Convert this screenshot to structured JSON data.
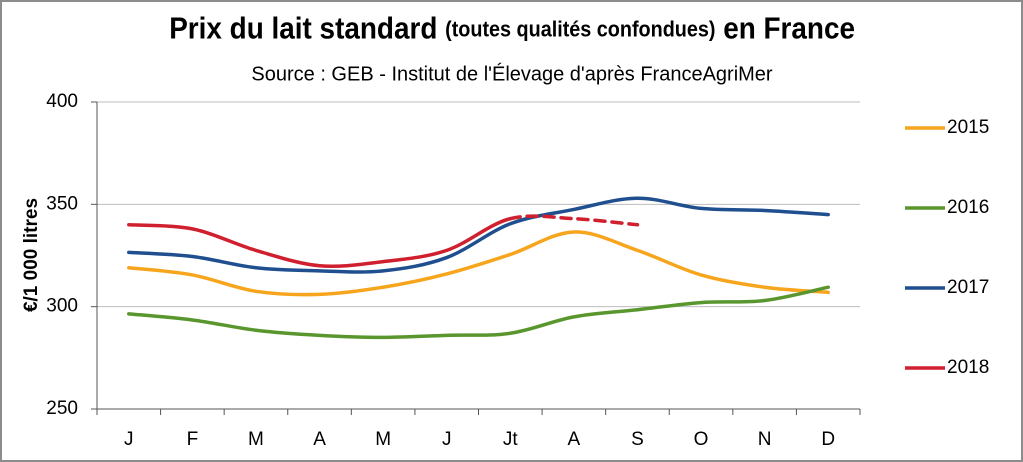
{
  "chart_data": {
    "type": "line",
    "title": "Prix du lait standard",
    "title_note": "(toutes qualités confondues)",
    "title_end": "en France",
    "subtitle": "Source : GEB - Institut de l'Élevage d'après FranceAgriMer",
    "y_label": "€/1 000 litres",
    "categories": [
      "J",
      "F",
      "M",
      "A",
      "M",
      "J",
      "Jt",
      "A",
      "S",
      "O",
      "N",
      "D"
    ],
    "series": [
      {
        "name": "2015",
        "color": "#f7a51c",
        "values": [
          319,
          315.5,
          307.5,
          306,
          309.5,
          316,
          325.5,
          336.5,
          327.5,
          315.5,
          309.5,
          307
        ]
      },
      {
        "name": "2016",
        "color": "#5a962e",
        "values": [
          296.5,
          293.5,
          288.5,
          286,
          285,
          286,
          287,
          295,
          298.5,
          302,
          303,
          309.5
        ]
      },
      {
        "name": "2017",
        "color": "#1f4f8f",
        "values": [
          326.5,
          324.5,
          319,
          317.5,
          317.5,
          324,
          340.5,
          347.5,
          353,
          348,
          347,
          345
        ]
      },
      {
        "name": "2018",
        "color": "#d01f2e",
        "dashed_from": 6,
        "values": [
          340,
          338,
          327.5,
          320,
          322,
          327.5,
          343,
          343,
          340,
          null,
          null,
          null
        ]
      }
    ],
    "ylim": [
      250,
      400
    ],
    "yticks": [
      250,
      300,
      350,
      400
    ],
    "grid": true,
    "legend": "right"
  }
}
